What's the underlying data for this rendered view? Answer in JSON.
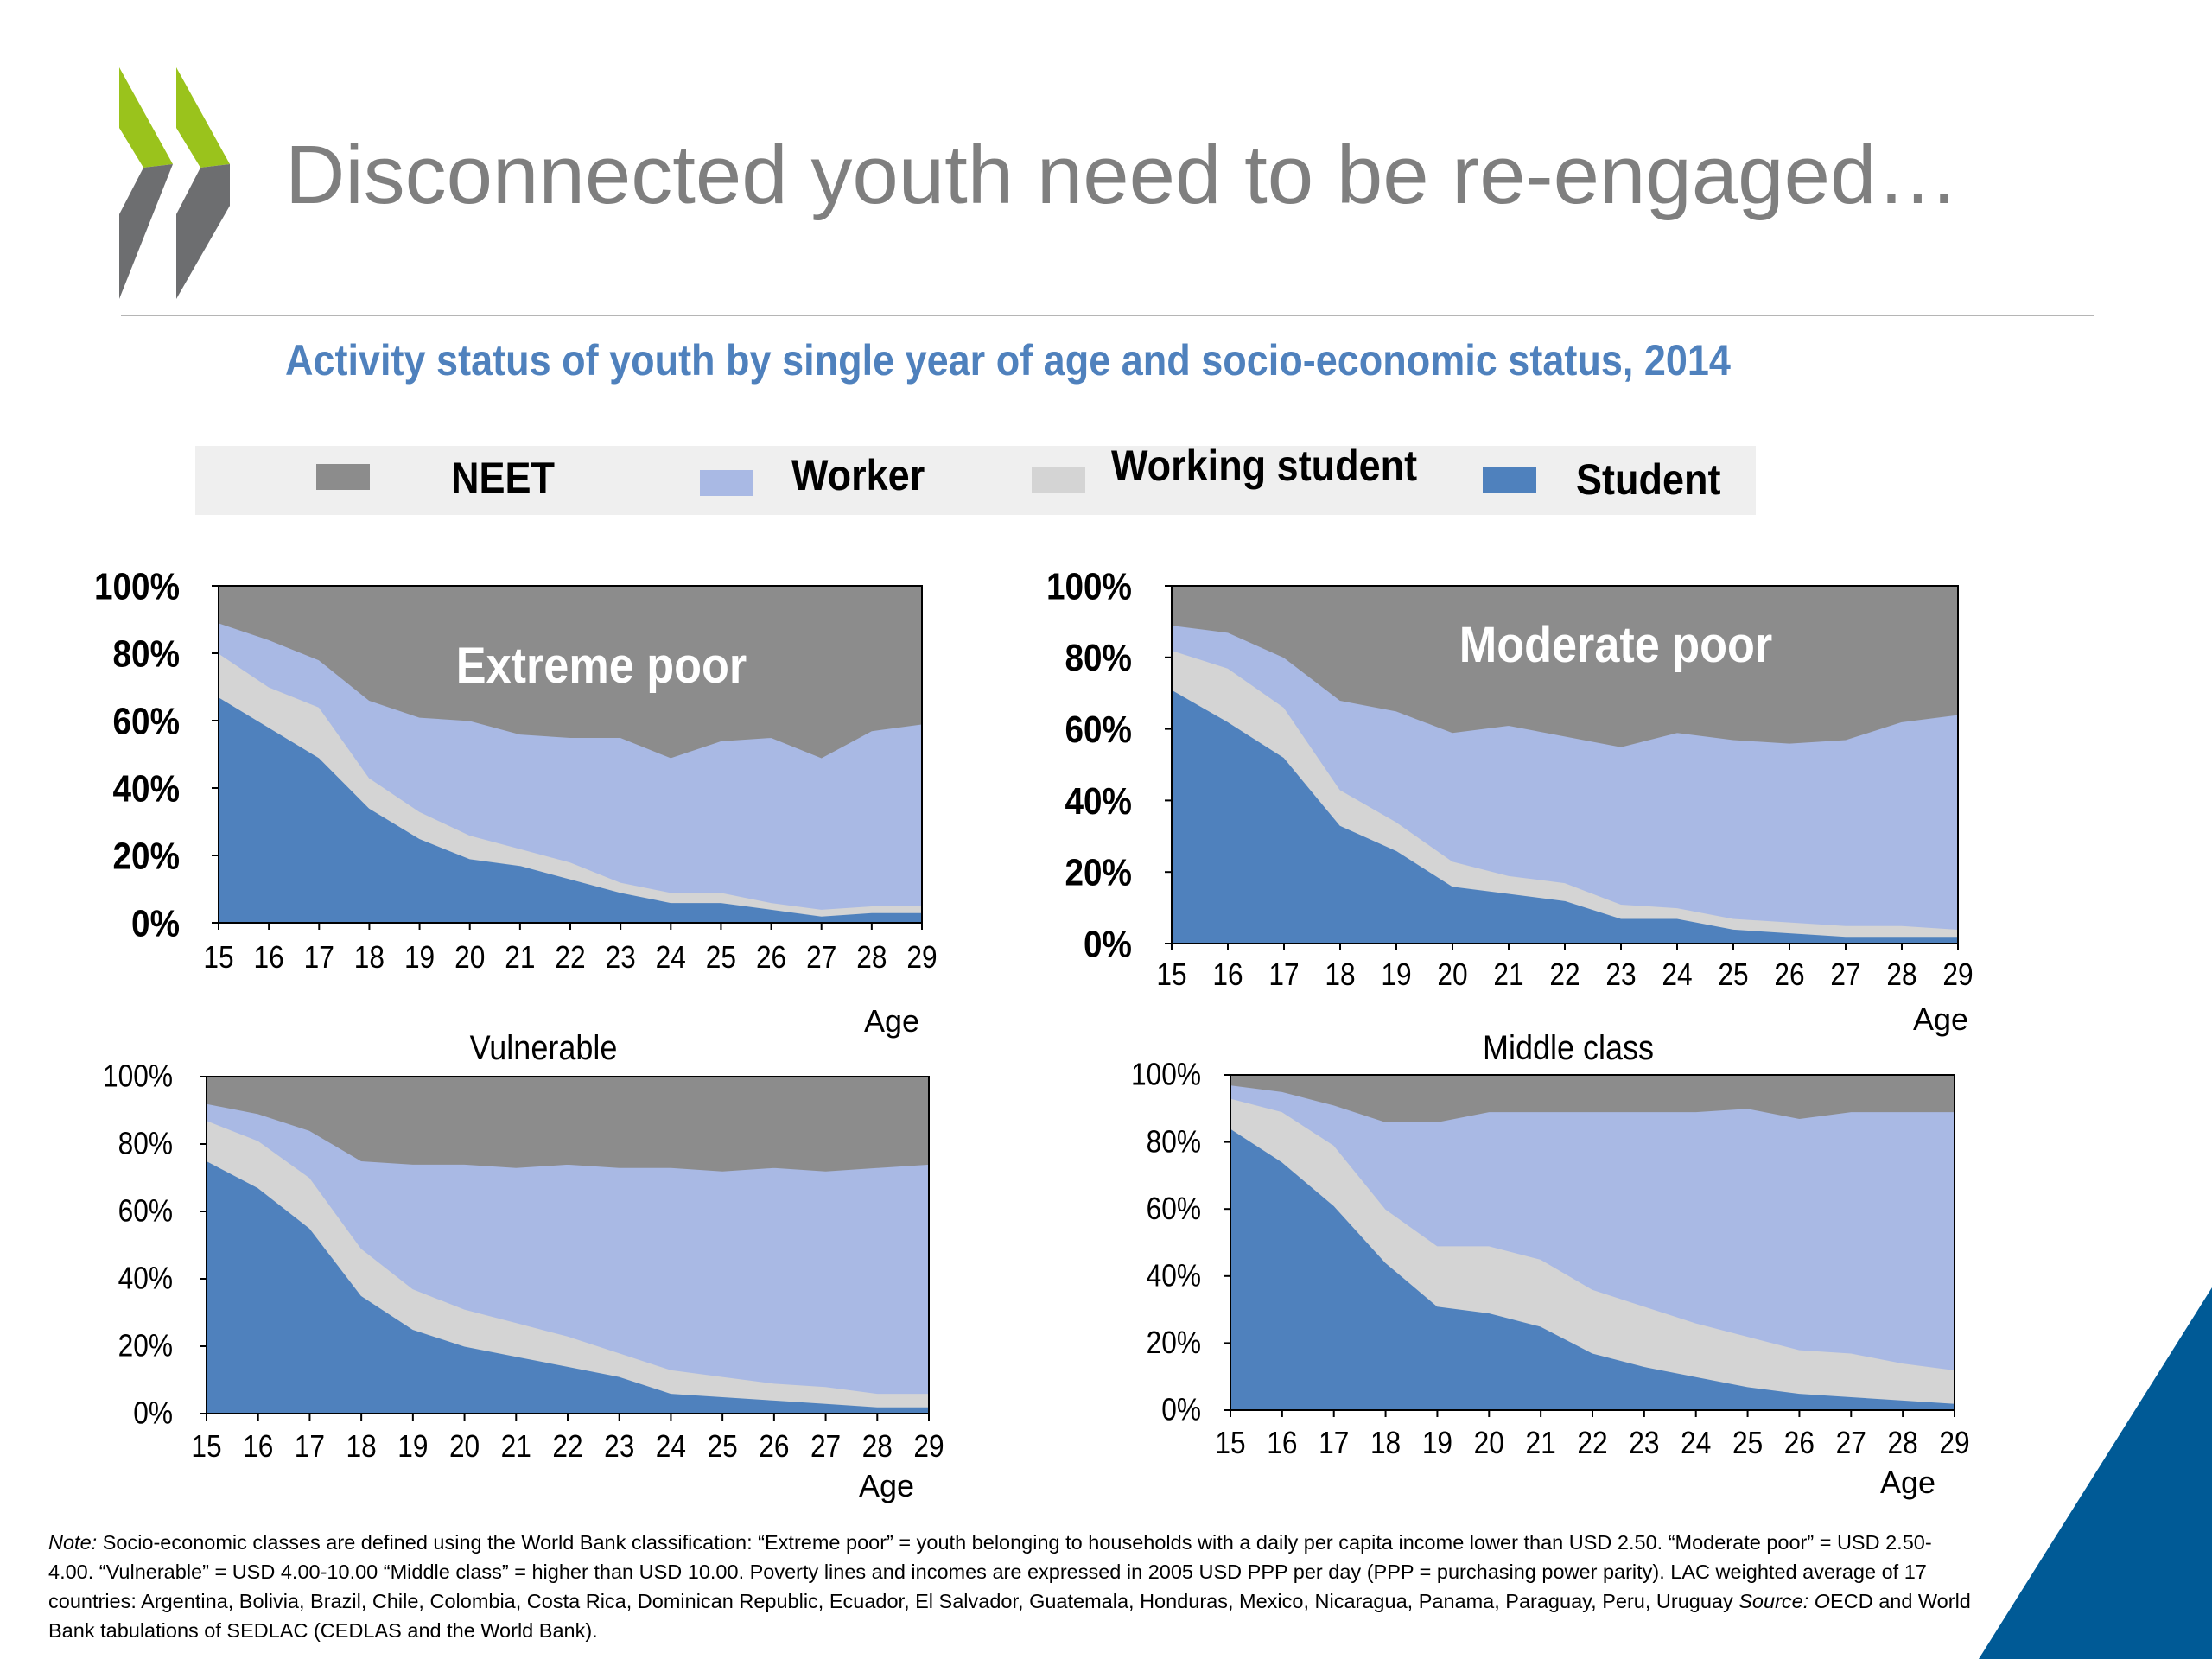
{
  "slide": {
    "title": "Disconnected youth need to be re-engaged…",
    "subtitle": "Activity status of youth by single year of age and socio-economic status, 2014"
  },
  "legend": [
    {
      "label": "NEET",
      "color": "#8c8c8c"
    },
    {
      "label": "Worker",
      "color": "#a9b9e4"
    },
    {
      "label": "Working student",
      "color": "#d4d4d4"
    },
    {
      "label": "Student",
      "color": "#4f81bd"
    }
  ],
  "colors": {
    "neet": "#8c8c8c",
    "worker": "#a9b9e4",
    "working_student": "#d4d4d4",
    "student": "#4f81bd",
    "title_blue": "#4f81bd",
    "logo_green": "#9ac31c",
    "logo_grey": "#6d6e70",
    "corner": "#005a96"
  },
  "chart_data": [
    {
      "type": "area",
      "title": "Extreme poor",
      "xlabel": "Age",
      "x": [
        15,
        16,
        17,
        18,
        19,
        20,
        21,
        22,
        23,
        24,
        25,
        26,
        27,
        28,
        29
      ],
      "yticks": [
        "0%",
        "20%",
        "40%",
        "60%",
        "80%",
        "100%"
      ],
      "ylim": [
        0,
        100
      ],
      "series": [
        {
          "name": "Student",
          "values": [
            67,
            58,
            49,
            34,
            25,
            19,
            17,
            13,
            9,
            6,
            6,
            4,
            2,
            3,
            3
          ]
        },
        {
          "name": "Working student",
          "values": [
            13,
            12,
            15,
            9,
            8,
            7,
            5,
            5,
            3,
            3,
            3,
            2,
            2,
            2,
            2
          ]
        },
        {
          "name": "Worker",
          "values": [
            9,
            14,
            14,
            23,
            28,
            34,
            34,
            37,
            43,
            40,
            45,
            49,
            45,
            52,
            54
          ]
        },
        {
          "name": "NEET",
          "values": [
            11,
            16,
            22,
            34,
            39,
            40,
            44,
            45,
            45,
            51,
            46,
            45,
            51,
            43,
            41
          ]
        }
      ]
    },
    {
      "type": "area",
      "title": "Moderate poor",
      "xlabel": "Age",
      "x": [
        15,
        16,
        17,
        18,
        19,
        20,
        21,
        22,
        23,
        24,
        25,
        26,
        27,
        28,
        29
      ],
      "yticks": [
        "0%",
        "20%",
        "40%",
        "60%",
        "80%",
        "100%"
      ],
      "ylim": [
        0,
        100
      ],
      "series": [
        {
          "name": "Student",
          "values": [
            71,
            62,
            52,
            33,
            26,
            16,
            14,
            12,
            7,
            7,
            4,
            3,
            2,
            2,
            2
          ]
        },
        {
          "name": "Working student",
          "values": [
            11,
            15,
            14,
            10,
            8,
            7,
            5,
            5,
            4,
            3,
            3,
            3,
            3,
            3,
            2
          ]
        },
        {
          "name": "Worker",
          "values": [
            7,
            10,
            14,
            25,
            31,
            36,
            42,
            41,
            44,
            49,
            50,
            50,
            52,
            57,
            60
          ]
        },
        {
          "name": "NEET",
          "values": [
            11,
            13,
            20,
            32,
            35,
            41,
            39,
            42,
            45,
            41,
            43,
            44,
            43,
            38,
            36
          ]
        }
      ]
    },
    {
      "type": "area",
      "title": "Vulnerable",
      "xlabel": "Age",
      "x": [
        15,
        16,
        17,
        18,
        19,
        20,
        21,
        22,
        23,
        24,
        25,
        26,
        27,
        28,
        29
      ],
      "yticks": [
        "0%",
        "20%",
        "40%",
        "60%",
        "80%",
        "100%"
      ],
      "ylim": [
        0,
        100
      ],
      "series": [
        {
          "name": "Student",
          "values": [
            75,
            67,
            55,
            35,
            25,
            20,
            17,
            14,
            11,
            6,
            5,
            4,
            3,
            2,
            2
          ]
        },
        {
          "name": "Working student",
          "values": [
            12,
            14,
            15,
            14,
            12,
            11,
            10,
            9,
            7,
            7,
            6,
            5,
            5,
            4,
            4
          ]
        },
        {
          "name": "Worker",
          "values": [
            5,
            8,
            14,
            26,
            37,
            43,
            46,
            51,
            55,
            60,
            61,
            64,
            64,
            67,
            68
          ]
        },
        {
          "name": "NEET",
          "values": [
            8,
            11,
            16,
            25,
            26,
            26,
            27,
            26,
            27,
            27,
            28,
            27,
            28,
            27,
            26
          ]
        }
      ]
    },
    {
      "type": "area",
      "title": "Middle class",
      "xlabel": "Age",
      "x": [
        15,
        16,
        17,
        18,
        19,
        20,
        21,
        22,
        23,
        24,
        25,
        26,
        27,
        28,
        29
      ],
      "yticks": [
        "0%",
        "20%",
        "40%",
        "60%",
        "80%",
        "100%"
      ],
      "ylim": [
        0,
        100
      ],
      "series": [
        {
          "name": "Student",
          "values": [
            84,
            74,
            61,
            44,
            31,
            29,
            25,
            17,
            13,
            10,
            7,
            5,
            4,
            3,
            2
          ]
        },
        {
          "name": "Working student",
          "values": [
            9,
            15,
            18,
            16,
            18,
            20,
            20,
            19,
            18,
            16,
            15,
            13,
            13,
            11,
            10
          ]
        },
        {
          "name": "Worker",
          "values": [
            4,
            6,
            12,
            26,
            37,
            40,
            44,
            53,
            58,
            63,
            68,
            69,
            72,
            75,
            77
          ]
        },
        {
          "name": "NEET",
          "values": [
            3,
            5,
            9,
            14,
            14,
            11,
            11,
            11,
            11,
            11,
            10,
            13,
            11,
            11,
            11
          ]
        }
      ]
    }
  ],
  "footnote": {
    "note_label": "Note:",
    "note_text": " Socio-economic classes are defined using the World Bank classification: “Extreme poor” = youth belonging to households with a daily per capita income lower than USD 2.50. “Moderate poor” = USD 2.50-4.00. “Vulnerable” = USD 4.00-10.00 “Middle class” = higher than USD 10.00. Poverty lines and incomes are expressed in 2005 USD PPP per day (PPP = purchasing power parity). LAC weighted average of 17 countries: Argentina, Bolivia, Brazil, Chile, Colombia, Costa Rica, Dominican Republic, Ecuador, El Salvador, Guatemala, Honduras, Mexico, Nicaragua, Panama, Paraguay, Peru, Uruguay ",
    "source_label": "Source: O",
    "source_text": "ECD and World Bank tabulations of SEDLAC (CEDLAS and the World Bank)."
  }
}
